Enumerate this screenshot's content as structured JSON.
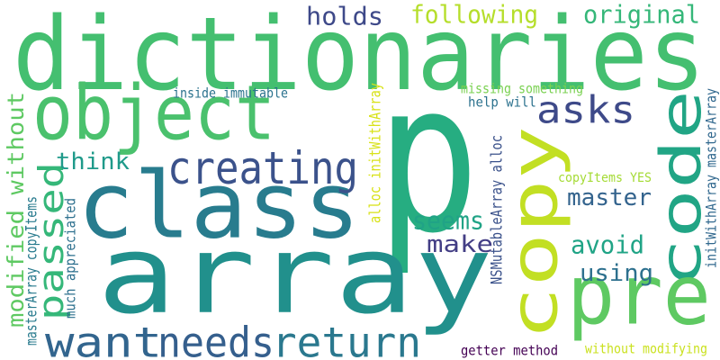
{
  "words": [
    {
      "text": "p",
      "color": "#26ad81"
    },
    {
      "text": "array",
      "color": "#21908c"
    },
    {
      "text": "dictionaries",
      "color": "#44bf70"
    },
    {
      "text": "class",
      "color": "#287c8e"
    },
    {
      "text": "copy",
      "color": "#c2df23"
    },
    {
      "text": "code",
      "color": "#21a585"
    },
    {
      "text": "object",
      "color": "#4ac16d"
    },
    {
      "text": "pre",
      "color": "#5ec962"
    },
    {
      "text": "creating",
      "color": "#3b528b"
    },
    {
      "text": "return",
      "color": "#2a788e"
    },
    {
      "text": "needs",
      "color": "#355f8d"
    },
    {
      "text": "want",
      "color": "#32658e"
    },
    {
      "text": "asks",
      "color": "#3e4a89"
    },
    {
      "text": "passed",
      "color": "#35b779"
    },
    {
      "text": "modified without",
      "color": "#5ec962"
    },
    {
      "text": "holds",
      "color": "#3e4989"
    },
    {
      "text": "following",
      "color": "#b5de2b"
    },
    {
      "text": "original",
      "color": "#35b779"
    },
    {
      "text": "think",
      "color": "#1f9a8a"
    },
    {
      "text": "master",
      "color": "#33638d"
    },
    {
      "text": "seems",
      "color": "#20a386"
    },
    {
      "text": "make",
      "color": "#433e85"
    },
    {
      "text": "avoid",
      "color": "#20a486"
    },
    {
      "text": "using",
      "color": "#2d708e"
    },
    {
      "text": "inside immutable",
      "color": "#2c738e"
    },
    {
      "text": "missing something",
      "color": "#7ad151"
    },
    {
      "text": "help will",
      "color": "#2c728e"
    },
    {
      "text": "alloc initWithArray",
      "color": "#d8e219"
    },
    {
      "text": "NSMutableArray alloc",
      "color": "#3b528b"
    },
    {
      "text": "copyItems YES",
      "color": "#a5db36"
    },
    {
      "text": "initWithArray masterArray",
      "color": "#31688e"
    },
    {
      "text": "masterArray copyItems",
      "color": "#297b8e"
    },
    {
      "text": "much appreciated",
      "color": "#2d708e"
    },
    {
      "text": "getter method",
      "color": "#440154"
    },
    {
      "text": "without modifying",
      "color": "#cae11f"
    }
  ]
}
